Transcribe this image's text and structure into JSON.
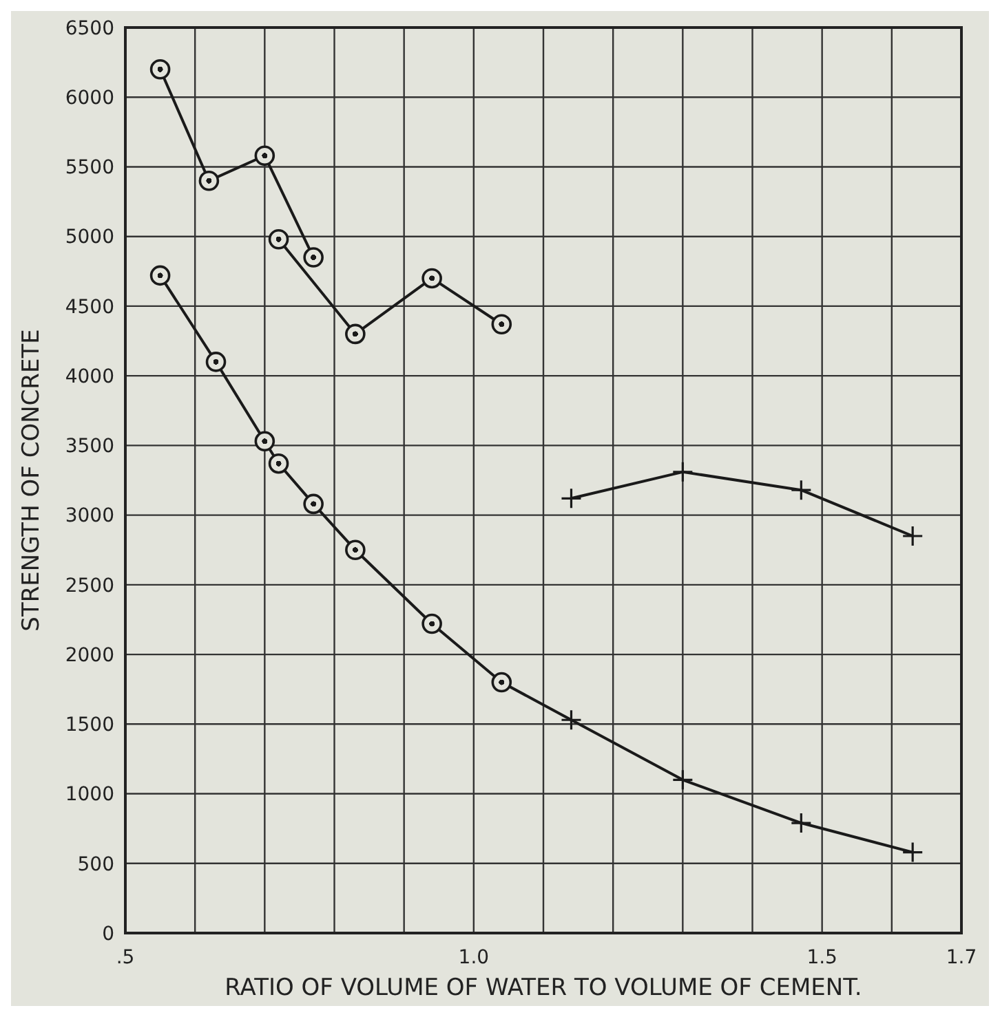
{
  "chart_data": {
    "type": "line",
    "xlabel": "RATIO OF VOLUME OF WATER TO VOLUME OF CEMENT.",
    "ylabel": "STRENGTH OF CONCRETE",
    "xlim": [
      0.5,
      1.7
    ],
    "ylim": [
      0,
      6500
    ],
    "xticks": [
      {
        "value": 0.5,
        "label": ".5"
      },
      {
        "value": 0.6,
        "label": null
      },
      {
        "value": 0.7,
        "label": null
      },
      {
        "value": 0.8,
        "label": null
      },
      {
        "value": 0.9,
        "label": null
      },
      {
        "value": 1.0,
        "label": "1.0"
      },
      {
        "value": 1.1,
        "label": null
      },
      {
        "value": 1.2,
        "label": null
      },
      {
        "value": 1.3,
        "label": null
      },
      {
        "value": 1.4,
        "label": null
      },
      {
        "value": 1.5,
        "label": "1.5"
      },
      {
        "value": 1.6,
        "label": null
      },
      {
        "value": 1.7,
        "label": "1.7"
      }
    ],
    "yticks": [
      0,
      500,
      1000,
      1500,
      2000,
      2500,
      3000,
      3500,
      4000,
      4500,
      5000,
      5500,
      6000,
      6500
    ],
    "grid": true,
    "line_style": "solid",
    "series": [
      {
        "color": "#1a1a1a",
        "marker": "circle",
        "x": [
          0.55,
          0.62,
          0.7,
          0.77
        ],
        "values": [
          6200,
          5400,
          5580,
          4850
        ]
      },
      {
        "color": "#1a1a1a",
        "marker": "circle",
        "x": [
          0.72,
          0.83,
          0.94,
          1.04
        ],
        "values": [
          4980,
          4300,
          4700,
          4370
        ]
      },
      {
        "color": "#1a1a1a",
        "marker": "cross",
        "x": [
          1.14,
          1.3,
          1.47,
          1.63
        ],
        "values": [
          3120,
          3310,
          3180,
          2850
        ]
      },
      {
        "color": "#1a1a1a",
        "x": [
          0.55,
          0.63,
          0.7,
          0.72,
          0.77,
          0.83,
          0.94,
          1.04,
          1.14,
          1.3,
          1.47,
          1.63
        ],
        "values": [
          4720,
          4100,
          3530,
          3370,
          3080,
          2750,
          2220,
          1800,
          1530,
          1100,
          790,
          580
        ]
      },
      {
        "type": "scatter",
        "color": "#1a1a1a",
        "marker": "circle",
        "x": [
          0.55,
          0.63,
          0.7,
          0.77
        ],
        "values": [
          4720,
          4100,
          3530,
          3080
        ]
      },
      {
        "type": "scatter",
        "color": "#1a1a1a",
        "marker": "circle",
        "x": [
          0.72,
          0.83,
          0.94,
          1.04
        ],
        "values": [
          3370,
          2750,
          2220,
          1800
        ]
      },
      {
        "type": "scatter",
        "color": "#1a1a1a",
        "marker": "cross",
        "x": [
          1.14,
          1.3,
          1.47,
          1.63
        ],
        "values": [
          1530,
          1100,
          790,
          580
        ]
      }
    ]
  }
}
